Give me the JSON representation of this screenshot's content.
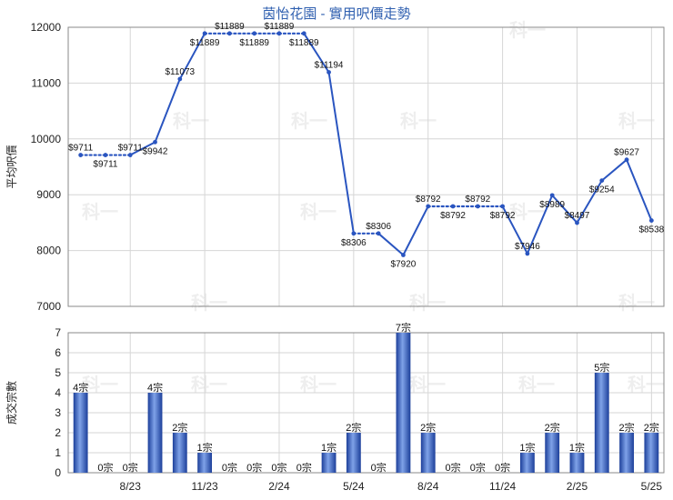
{
  "title": "茵怡花園 - 實用呎價走勢",
  "watermark": "科一",
  "chart_data": [
    {
      "type": "line",
      "ylabel": "平均呎價",
      "ylim": [
        7000,
        12000
      ],
      "yticks": [
        7000,
        8000,
        9000,
        10000,
        11000,
        12000
      ],
      "label_prefix": "$",
      "points": [
        {
          "v": 9711,
          "traded": true
        },
        {
          "v": 9711,
          "traded": false
        },
        {
          "v": 9711,
          "traded": false
        },
        {
          "v": 9942,
          "traded": true
        },
        {
          "v": 11073,
          "traded": true
        },
        {
          "v": 11889,
          "traded": true
        },
        {
          "v": 11889,
          "traded": false
        },
        {
          "v": 11889,
          "traded": false
        },
        {
          "v": 11889,
          "traded": false
        },
        {
          "v": 11889,
          "traded": false
        },
        {
          "v": 11194,
          "traded": true
        },
        {
          "v": 8306,
          "traded": true
        },
        {
          "v": 8306,
          "traded": false
        },
        {
          "v": 7920,
          "traded": true
        },
        {
          "v": 8792,
          "traded": true
        },
        {
          "v": 8792,
          "traded": false
        },
        {
          "v": 8792,
          "traded": false
        },
        {
          "v": 8792,
          "traded": false
        },
        {
          "v": 7946,
          "traded": true
        },
        {
          "v": 8989,
          "traded": true
        },
        {
          "v": 8497,
          "traded": true
        },
        {
          "v": 9254,
          "traded": true
        },
        {
          "v": 9627,
          "traded": true
        },
        {
          "v": 8538,
          "traded": true
        }
      ]
    },
    {
      "type": "bar",
      "ylabel": "成交宗數",
      "ylim": [
        0,
        7
      ],
      "yticks": [
        0,
        1,
        2,
        3,
        4,
        5,
        6,
        7
      ],
      "unit": "宗",
      "values": [
        4,
        0,
        0,
        4,
        2,
        1,
        0,
        0,
        0,
        0,
        1,
        2,
        0,
        7,
        2,
        0,
        0,
        0,
        1,
        2,
        1,
        5,
        2,
        2
      ]
    }
  ],
  "x_tick_labels": [
    "8/23",
    "11/23",
    "2/24",
    "5/24",
    "8/24",
    "11/24",
    "2/25",
    "5/25"
  ],
  "colors": {
    "line": "#2a55c0",
    "title": "#3060b0",
    "bar_dark": "#1c3f9a",
    "bar_light": "#6d93e0"
  }
}
